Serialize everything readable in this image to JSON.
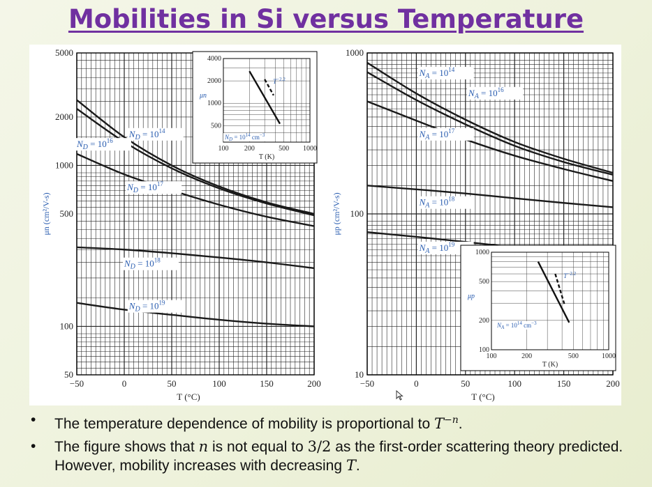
{
  "slide": {
    "title": "Mobilities in Si versus Temperature",
    "bullets": {
      "b1_pre": "The temperature dependence of mobility is proportional to ",
      "b1_T": "T",
      "b1_exp": "−n",
      "b1_post": ".",
      "b2_a": "The figure shows that ",
      "b2_n": "n",
      "b2_b": " is not equal to ",
      "b2_frac": "3/2",
      "b2_c": " as the first-order scattering theory predicted. However, mobility increases with decreasing ",
      "b2_T": "T",
      "b2_d": "."
    }
  },
  "colors": {
    "title": "#7030a0",
    "label_blue": "#2a5db0",
    "grid": "#222222",
    "curve": "#1a1a1a"
  },
  "chart_data": [
    {
      "type": "line",
      "xlabel": "T (°C)",
      "ylabel": "μn (cm²/V-s)",
      "xlim": [
        -50,
        200
      ],
      "ylim": [
        50,
        5000
      ],
      "yscale": "log",
      "x_ticks": [
        "−50",
        "0",
        "50",
        "100",
        "150",
        "200"
      ],
      "y_ticks": [
        {
          "v": 5000,
          "t": "5000"
        },
        {
          "v": 2000,
          "t": "2000"
        },
        {
          "v": 1000,
          "t": "1000"
        },
        {
          "v": 500,
          "t": "500"
        },
        {
          "v": 100,
          "t": "100"
        },
        {
          "v": 50,
          "t": "50"
        }
      ],
      "grid": true,
      "x": [
        -50,
        0,
        50,
        100,
        150,
        200
      ],
      "series": [
        {
          "name": "ND = 10^14",
          "values": [
            2550,
            1500,
            1000,
            740,
            590,
            500
          ],
          "label": {
            "pre": "N",
            "sub": "D",
            "mid": " = 10",
            "sup": "14"
          },
          "lx": 5,
          "ly": 1500
        },
        {
          "name": "ND = 10^16",
          "values": [
            2250,
            1400,
            960,
            720,
            580,
            490
          ],
          "label": {
            "pre": "N",
            "sub": "D",
            "mid": " = 10",
            "sup": "16"
          },
          "lx": -50,
          "ly": 1300
        },
        {
          "name": "ND = 10^17",
          "values": [
            1180,
            880,
            700,
            570,
            480,
            420
          ],
          "label": {
            "pre": "N",
            "sub": "D",
            "mid": " = 10",
            "sup": "17"
          },
          "lx": 3,
          "ly": 700
        },
        {
          "name": "ND = 10^18",
          "values": [
            310,
            300,
            285,
            268,
            250,
            230
          ],
          "label": {
            "pre": "N",
            "sub": "D",
            "mid": " = 10",
            "sup": "18"
          },
          "lx": 0,
          "ly": 235
        },
        {
          "name": "ND = 10^19",
          "values": [
            140,
            127,
            118,
            110,
            104,
            100
          ],
          "label": {
            "pre": "N",
            "sub": "D",
            "mid": " = 10",
            "sup": "19"
          },
          "lx": 5,
          "ly": 128
        }
      ],
      "inset": {
        "xlabel": "T (K)",
        "ylabel": "μn",
        "xscale": "log",
        "yscale": "log",
        "xlim": [
          100,
          1000
        ],
        "ylim": [
          300,
          4000
        ],
        "x_ticks": [
          {
            "v": 100,
            "t": "100"
          },
          {
            "v": 200,
            "t": "200"
          },
          {
            "v": 500,
            "t": "500"
          },
          {
            "v": 1000,
            "t": "1000"
          }
        ],
        "y_ticks": [
          {
            "v": 4000,
            "t": "4000"
          },
          {
            "v": 2000,
            "t": "2000"
          },
          {
            "v": 1000,
            "t": "1000"
          },
          {
            "v": 500,
            "t": "500"
          }
        ],
        "solid": {
          "x": [
            200,
            450
          ],
          "y": [
            2700,
            530
          ]
        },
        "dashed": {
          "x": [
            300,
            380
          ],
          "y": [
            2100,
            1280
          ]
        },
        "ref_label": {
          "T": "T",
          "sup": "−2.2"
        },
        "conc_label": {
          "pre": "N",
          "sub": "D",
          "mid": " = 10",
          "sup": "14",
          "unit": " cm",
          "unitsup": "−3"
        }
      }
    },
    {
      "type": "line",
      "xlabel": "T (°C)",
      "ylabel": "μp (cm²/V-s)",
      "xlim": [
        -50,
        200
      ],
      "ylim": [
        10,
        1000
      ],
      "yscale": "log",
      "x_ticks": [
        "−50",
        "0",
        "50",
        "100",
        "150",
        "200"
      ],
      "y_ticks": [
        {
          "v": 1000,
          "t": "1000"
        },
        {
          "v": 100,
          "t": "100"
        },
        {
          "v": 10,
          "t": "10"
        }
      ],
      "grid": true,
      "x": [
        -50,
        0,
        50,
        100,
        150,
        200
      ],
      "series": [
        {
          "name": "NA = 10^14",
          "values": [
            870,
            560,
            385,
            280,
            220,
            180
          ],
          "label": {
            "pre": "N",
            "sub": "A",
            "mid": " = 10",
            "sup": "14"
          },
          "lx": 3,
          "ly": 720
        },
        {
          "name": "NA = 10^16",
          "values": [
            760,
            510,
            360,
            265,
            210,
            175
          ],
          "label": {
            "pre": "N",
            "sub": "A",
            "mid": " = 10",
            "sup": "16"
          },
          "lx": 53,
          "ly": 540
        },
        {
          "name": "NA = 10^17",
          "values": [
            500,
            380,
            290,
            230,
            190,
            160
          ],
          "label": {
            "pre": "N",
            "sub": "A",
            "mid": " = 10",
            "sup": "17"
          },
          "lx": 3,
          "ly": 300
        },
        {
          "name": "NA = 10^18",
          "values": [
            150,
            142,
            134,
            125,
            117,
            110
          ],
          "label": {
            "pre": "N",
            "sub": "A",
            "mid": " = 10",
            "sup": "18"
          },
          "lx": 3,
          "ly": 113
        },
        {
          "name": "NA = 10^19",
          "values": [
            77,
            72,
            67,
            62,
            58,
            55
          ],
          "label": {
            "pre": "N",
            "sub": "A",
            "mid": " = 10",
            "sup": "19"
          },
          "lx": 3,
          "ly": 59
        }
      ],
      "inset": {
        "xlabel": "T (K)",
        "ylabel": "μp",
        "xscale": "log",
        "yscale": "log",
        "xlim": [
          100,
          1000
        ],
        "ylim": [
          100,
          1000
        ],
        "x_ticks": [
          {
            "v": 100,
            "t": "100"
          },
          {
            "v": 200,
            "t": "200"
          },
          {
            "v": 500,
            "t": "500"
          },
          {
            "v": 1000,
            "t": "1000"
          }
        ],
        "y_ticks": [
          {
            "v": 1000,
            "t": "1000"
          },
          {
            "v": 500,
            "t": "500"
          },
          {
            "v": 200,
            "t": "200"
          },
          {
            "v": 100,
            "t": "100"
          }
        ],
        "solid": {
          "x": [
            250,
            460
          ],
          "y": [
            800,
            190
          ]
        },
        "dashed": {
          "x": [
            350,
            420
          ],
          "y": [
            600,
            290
          ]
        },
        "ref_label": {
          "T": "T",
          "sup": "−2.2"
        },
        "conc_label": {
          "pre": "N",
          "sub": "A",
          "mid": " = 10",
          "sup": "14",
          "unit": " cm",
          "unitsup": "−3"
        }
      }
    }
  ]
}
